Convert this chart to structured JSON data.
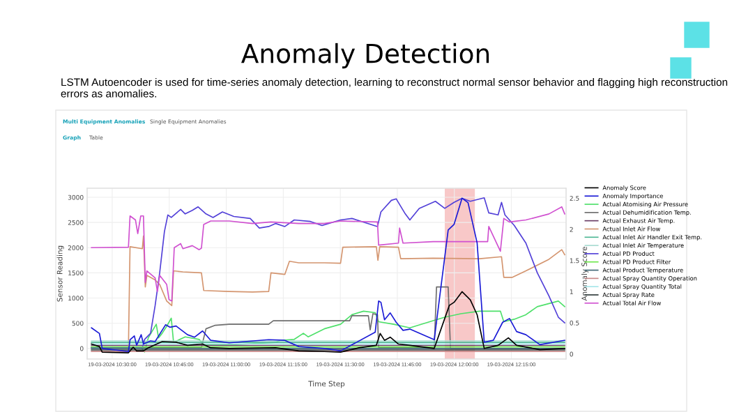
{
  "chart_data": {
    "type": "line",
    "title": "Anomaly Detection",
    "subtitle": "LSTM Autoencoder is used for time-series anomaly detection, learning to reconstruct normal sensor behavior and flagging high reconstruction errors as anomalies.",
    "annotations": [
      "Multi Equipment Anomalies",
      "Single Equipment Anomalies",
      "Graph",
      "Table"
    ],
    "xlabel": "Time Step",
    "ylabel": "Sensor Reading",
    "y2label": "Anomaly Score",
    "xlim": [
      "2024-03-19T10:23:24",
      "2024-03-19T12:29:24"
    ],
    "xticks": [
      {
        "value": "2024-03-19T10:30",
        "label": "19-03-2024 10:30:00"
      },
      {
        "value": "2024-03-19T10:45",
        "label": "19-03-2024 10:45:00"
      },
      {
        "value": "2024-03-19T11:00",
        "label": "19-03-2024 11:00:00"
      },
      {
        "value": "2024-03-19T11:15",
        "label": "19-03-2024 11:15:00"
      },
      {
        "value": "2024-03-19T11:30",
        "label": "19-03-2024 11:30:00"
      },
      {
        "value": "2024-03-19T11:45",
        "label": "19-03-2024 11:45:00"
      },
      {
        "value": "2024-03-19T12:00",
        "label": "19-03-2024 12:00:00"
      },
      {
        "value": "2024-03-19T12:15",
        "label": "19-03-2024 12:15:00"
      }
    ],
    "ylim": [
      -210,
      3180
    ],
    "yticks": [
      0,
      500,
      1000,
      1500,
      2000,
      2500,
      3000
    ],
    "y2lim": [
      -0.08,
      2.66
    ],
    "y2ticks": [
      0,
      0.5,
      1,
      1.5,
      2,
      2.5
    ],
    "grid": true,
    "legend": "right",
    "bands": [
      {
        "axis": "x",
        "from": "2024-03-19T11:57:29",
        "to": "2024-03-19T12:05:24",
        "color": "#f8c8c8"
      }
    ],
    "series": [
      {
        "name": "Anomaly Score",
        "color": "#000000",
        "axis": "y2",
        "x": [
          "2024-03-19T10:24:32",
          "2024-03-19T10:26:38",
          "2024-03-19T10:27:22",
          "2024-03-19T10:34:16",
          "2024-03-19T10:35:31",
          "2024-03-19T10:36:25",
          "2024-03-19T10:38:13",
          "2024-03-19T10:39:29",
          "2024-03-19T10:43:08",
          "2024-03-19T10:46:48",
          "2024-03-19T10:49:48",
          "2024-03-19T10:53:46",
          "2024-03-19T10:55:55",
          "2024-03-19T11:00:47",
          "2024-03-19T11:13:01",
          "2024-03-19T11:19:05",
          "2024-03-19T11:25:48",
          "2024-03-19T11:30:04",
          "2024-03-19T11:34:55",
          "2024-03-19T11:39:29",
          "2024-03-19T11:40:30",
          "2024-03-19T11:41:38",
          "2024-03-19T11:43:08",
          "2024-03-19T11:45:18",
          "2024-03-19T11:48:18",
          "2024-03-19T11:54:43",
          "2024-03-19T11:58:41",
          "2024-03-19T11:59:56",
          "2024-03-19T12:02:02",
          "2024-03-19T12:04:12",
          "2024-03-19T12:06:00",
          "2024-03-19T12:07:52",
          "2024-03-19T12:11:31",
          "2024-03-19T12:14:13",
          "2024-03-19T12:16:23",
          "2024-03-19T12:22:30",
          "2024-03-19T12:29:02"
        ],
        "values": [
          0.16,
          0.12,
          0.03,
          0.02,
          0.11,
          0.05,
          0.05,
          0.1,
          0.2,
          0.19,
          0.14,
          0.16,
          0.1,
          0.09,
          0.1,
          0.05,
          0.04,
          0.03,
          0.1,
          0.14,
          0.33,
          0.22,
          0.27,
          0.16,
          0.14,
          0.09,
          0.78,
          0.83,
          1.0,
          0.87,
          0.63,
          0.09,
          0.14,
          0.26,
          0.14,
          0.07,
          0.09
        ]
      },
      {
        "name": "Anomaly Importance",
        "color": "#1a1ad6",
        "axis": "y2",
        "x": [
          "2024-03-19T10:24:32",
          "2024-03-19T10:26:38",
          "2024-03-19T10:27:22",
          "2024-03-19T10:34:16",
          "2024-03-19T10:34:41",
          "2024-03-19T10:35:49",
          "2024-03-19T10:36:25",
          "2024-03-19T10:37:37",
          "2024-03-19T10:38:13",
          "2024-03-19T10:40:05",
          "2024-03-19T10:41:17",
          "2024-03-19T10:44:02",
          "2024-03-19T10:45:14",
          "2024-03-19T10:46:48",
          "2024-03-19T10:49:48",
          "2024-03-19T10:51:40",
          "2024-03-19T10:53:46",
          "2024-03-19T10:55:55",
          "2024-03-19T11:00:47",
          "2024-03-19T11:11:10",
          "2024-03-19T11:15:25",
          "2024-03-19T11:19:05",
          "2024-03-19T11:25:48",
          "2024-03-19T11:30:04",
          "2024-03-19T11:39:11",
          "2024-03-19T11:40:05",
          "2024-03-19T11:40:41",
          "2024-03-19T11:41:38",
          "2024-03-19T11:43:08",
          "2024-03-19T11:44:42",
          "2024-03-19T11:46:30",
          "2024-03-19T11:48:18",
          "2024-03-19T11:54:43",
          "2024-03-19T11:58:23",
          "2024-03-19T11:59:56",
          "2024-03-19T12:02:02",
          "2024-03-19T12:03:36",
          "2024-03-19T12:06:00",
          "2024-03-19T12:07:52",
          "2024-03-19T12:10:16",
          "2024-03-19T12:12:43",
          "2024-03-19T12:14:31",
          "2024-03-19T12:16:23",
          "2024-03-19T12:18:50",
          "2024-03-19T12:22:30",
          "2024-03-19T12:29:02"
        ],
        "values": [
          0.42,
          0.33,
          0.09,
          0.04,
          0.23,
          0.29,
          0.14,
          0.31,
          0.16,
          0.21,
          0.2,
          0.47,
          0.43,
          0.45,
          0.31,
          0.27,
          0.37,
          0.22,
          0.18,
          0.23,
          0.22,
          0.12,
          0.09,
          0.05,
          0.35,
          0.85,
          0.83,
          0.55,
          0.66,
          0.51,
          0.38,
          0.4,
          0.23,
          1.99,
          2.08,
          2.5,
          2.43,
          1.78,
          0.19,
          0.22,
          0.51,
          0.57,
          0.36,
          0.31,
          0.15,
          0.22
        ]
      },
      {
        "name": "Actual Atomising Air Pressure",
        "color": "#4ee06a",
        "x": [
          "2024-03-19T10:24:32",
          "2024-03-19T10:37:37",
          "2024-03-19T10:38:31",
          "2024-03-19T10:39:29",
          "2024-03-19T10:41:35",
          "2024-03-19T10:42:11",
          "2024-03-19T10:43:08",
          "2024-03-19T10:44:20",
          "2024-03-19T10:45:32",
          "2024-03-19T10:46:08",
          "2024-03-19T10:49:12",
          "2024-03-19T10:52:52",
          "2024-03-19T10:54:04",
          "2024-03-19T11:00:47",
          "2024-03-19T11:13:01",
          "2024-03-19T11:14:13",
          "2024-03-19T11:17:53",
          "2024-03-19T11:20:17",
          "2024-03-19T11:21:32",
          "2024-03-19T11:25:48",
          "2024-03-19T11:30:04",
          "2024-03-19T11:33:04",
          "2024-03-19T11:36:07",
          "2024-03-19T11:39:11",
          "2024-03-19T11:40:05",
          "2024-03-19T11:44:02",
          "2024-03-19T11:48:18",
          "2024-03-19T11:54:25",
          "2024-03-19T11:57:29",
          "2024-03-19T12:01:44",
          "2024-03-19T12:06:36",
          "2024-03-19T12:12:07",
          "2024-03-19T12:13:01",
          "2024-03-19T12:15:47",
          "2024-03-19T12:18:50",
          "2024-03-19T12:21:50",
          "2024-03-19T12:27:22",
          "2024-03-19T12:29:02"
        ],
        "values": [
          20,
          20,
          -70,
          210,
          480,
          210,
          300,
          440,
          600,
          120,
          230,
          180,
          70,
          70,
          120,
          160,
          180,
          300,
          230,
          390,
          480,
          670,
          740,
          710,
          530,
          480,
          410,
          550,
          620,
          690,
          740,
          740,
          530,
          580,
          670,
          830,
          940,
          830
        ]
      },
      {
        "name": "Actual Dehumidification Temp.",
        "color": "#6e6e6e",
        "x": [
          "2024-03-19T10:24:32",
          "2024-03-19T10:53:28",
          "2024-03-19T10:54:40",
          "2024-03-19T10:57:07",
          "2024-03-19T11:00:47",
          "2024-03-19T11:11:10",
          "2024-03-19T11:12:22",
          "2024-03-19T11:25:48",
          "2024-03-19T11:32:28",
          "2024-03-19T11:33:04",
          "2024-03-19T11:37:23",
          "2024-03-19T11:37:52",
          "2024-03-19T11:38:35",
          "2024-03-19T11:39:47",
          "2024-03-19T11:40:05",
          "2024-03-19T11:54:43",
          "2024-03-19T11:55:19",
          "2024-03-19T11:58:23",
          "2024-03-19T11:58:59",
          "2024-03-19T12:29:02"
        ],
        "values": [
          20,
          20,
          390,
          460,
          480,
          480,
          550,
          550,
          550,
          650,
          650,
          370,
          690,
          670,
          20,
          20,
          1220,
          1220,
          0,
          0
        ]
      },
      {
        "name": "Actual Exhaust Air Temp.",
        "color": "#6b3d66",
        "x": [
          "2024-03-19T10:24:32",
          "2024-03-19T12:29:02"
        ],
        "values": [
          60,
          60
        ]
      },
      {
        "name": "Actual Inlet Air Flow",
        "color": "#d4956f",
        "x": [
          "2024-03-19T10:24:32",
          "2024-03-19T10:34:16",
          "2024-03-19T10:34:41",
          "2024-03-19T10:37:55",
          "2024-03-19T10:38:13",
          "2024-03-19T10:38:42",
          "2024-03-19T10:39:07",
          "2024-03-19T10:41:17",
          "2024-03-19T10:42:29",
          "2024-03-19T10:44:20",
          "2024-03-19T10:45:40",
          "2024-03-19T10:46:08",
          "2024-03-19T10:48:36",
          "2024-03-19T10:53:28",
          "2024-03-19T10:54:04",
          "2024-03-19T11:00:47",
          "2024-03-19T11:06:54",
          "2024-03-19T11:11:10",
          "2024-03-19T11:11:46",
          "2024-03-19T11:15:25",
          "2024-03-19T11:16:37",
          "2024-03-19T11:19:05",
          "2024-03-19T11:25:48",
          "2024-03-19T11:30:04",
          "2024-03-19T11:30:40",
          "2024-03-19T11:39:29",
          "2024-03-19T11:39:54",
          "2024-03-19T11:40:23",
          "2024-03-19T11:45:18",
          "2024-03-19T11:45:54",
          "2024-03-19T11:54:25",
          "2024-03-19T12:06:40",
          "2024-03-19T12:12:25",
          "2024-03-19T12:13:01",
          "2024-03-19T12:15:11",
          "2024-03-19T12:18:50",
          "2024-03-19T12:24:54",
          "2024-03-19T12:28:16",
          "2024-03-19T12:29:02"
        ],
        "values": [
          20,
          20,
          2020,
          1980,
          2230,
          1220,
          1450,
          1360,
          1270,
          940,
          850,
          1540,
          1520,
          1500,
          1150,
          1130,
          1120,
          1130,
          1500,
          1470,
          1730,
          1700,
          1700,
          1690,
          2010,
          2020,
          1750,
          2020,
          2010,
          1780,
          1790,
          1780,
          1820,
          1410,
          1410,
          1540,
          1770,
          1960,
          1860
        ]
      },
      {
        "name": "Actual Inlet Air Handler Exit Temp.",
        "color": "#4fb894",
        "x": [
          "2024-03-19T10:24:32",
          "2024-03-19T12:29:02"
        ],
        "values": [
          120,
          120
        ]
      },
      {
        "name": "Actual Inlet Air Temperature",
        "color": "#a8dcd2",
        "x": [
          "2024-03-19T10:24:32",
          "2024-03-19T12:29:02"
        ],
        "values": [
          150,
          150
        ]
      },
      {
        "name": "Actual PD Product",
        "color": "#5240d8",
        "x": [
          "2024-03-19T10:24:32",
          "2024-03-19T10:37:55",
          "2024-03-19T10:38:31",
          "2024-03-19T10:40:05",
          "2024-03-19T10:41:17",
          "2024-03-19T10:42:29",
          "2024-03-19T10:43:44",
          "2024-03-19T10:44:38",
          "2024-03-19T10:45:32",
          "2024-03-19T10:48:00",
          "2024-03-19T10:49:12",
          "2024-03-19T10:51:04",
          "2024-03-19T10:52:34",
          "2024-03-19T10:54:40",
          "2024-03-19T10:56:31",
          "2024-03-19T10:58:59",
          "2024-03-19T11:01:59",
          "2024-03-19T11:06:18",
          "2024-03-19T11:08:42",
          "2024-03-19T11:11:10",
          "2024-03-19T11:13:01",
          "2024-03-19T11:15:25",
          "2024-03-19T11:17:53",
          "2024-03-19T11:22:08",
          "2024-03-19T11:25:12",
          "2024-03-19T11:30:04",
          "2024-03-19T11:33:04",
          "2024-03-19T11:39:47",
          "2024-03-19T11:40:41",
          "2024-03-19T11:43:26",
          "2024-03-19T11:44:42",
          "2024-03-19T11:47:06",
          "2024-03-19T11:48:18",
          "2024-03-19T11:50:46",
          "2024-03-19T11:55:01",
          "2024-03-19T11:57:29",
          "2024-03-19T11:59:56",
          "2024-03-19T12:02:02",
          "2024-03-19T12:04:12",
          "2024-03-19T12:07:52",
          "2024-03-19T12:09:04",
          "2024-03-19T12:11:31",
          "2024-03-19T12:12:25",
          "2024-03-19T12:13:19",
          "2024-03-19T12:15:47",
          "2024-03-19T12:18:50",
          "2024-03-19T12:21:50",
          "2024-03-19T12:24:54",
          "2024-03-19T12:27:22",
          "2024-03-19T12:29:02"
        ],
        "values": [
          20,
          20,
          180,
          300,
          850,
          1500,
          2320,
          2650,
          2600,
          2760,
          2670,
          2740,
          2810,
          2670,
          2600,
          2710,
          2620,
          2580,
          2390,
          2420,
          2480,
          2420,
          2550,
          2520,
          2440,
          2550,
          2580,
          2420,
          2710,
          2940,
          2970,
          2670,
          2550,
          2780,
          2920,
          2780,
          2900,
          2980,
          2920,
          2990,
          2690,
          2650,
          2900,
          2650,
          2440,
          2090,
          1500,
          1040,
          620,
          510
        ]
      },
      {
        "name": "Actual PD Product Filter",
        "color": "#6fe84e",
        "x": [
          "2024-03-19T10:24:32",
          "2024-03-19T12:29:02"
        ],
        "values": [
          30,
          30
        ]
      },
      {
        "name": "Actual Product Temperature",
        "color": "#3f6676",
        "x": [
          "2024-03-19T10:24:32",
          "2024-03-19T12:29:02"
        ],
        "values": [
          0,
          0
        ]
      },
      {
        "name": "Actual Spray Quantity Operation",
        "color": "#c98a8a",
        "x": [
          "2024-03-19T10:24:32",
          "2024-03-19T12:29:02"
        ],
        "values": [
          -60,
          -60
        ]
      },
      {
        "name": "Actual Spray Quantity Total",
        "color": "#a6e6ea",
        "x": [
          "2024-03-19T10:24:32",
          "2024-03-19T12:29:02"
        ],
        "values": [
          90,
          90
        ]
      },
      {
        "name": "Actual Spray Rate",
        "color": "#2f3b3b",
        "x": [
          "2024-03-19T10:24:32",
          "2024-03-19T12:29:02"
        ],
        "values": [
          -30,
          -30
        ]
      },
      {
        "name": "Actual Total Air Flow",
        "color": "#d050d0",
        "x": [
          "2024-03-19T10:24:32",
          "2024-03-19T10:34:16",
          "2024-03-19T10:34:41",
          "2024-03-19T10:36:07",
          "2024-03-19T10:36:43",
          "2024-03-19T10:37:30",
          "2024-03-19T10:38:13",
          "2024-03-19T10:38:42",
          "2024-03-19T10:39:07",
          "2024-03-19T10:41:17",
          "2024-03-19T10:41:53",
          "2024-03-19T10:42:29",
          "2024-03-19T10:44:20",
          "2024-03-19T10:44:56",
          "2024-03-19T10:45:40",
          "2024-03-19T10:46:19",
          "2024-03-19T10:48:00",
          "2024-03-19T10:48:36",
          "2024-03-19T10:51:04",
          "2024-03-19T10:52:52",
          "2024-03-19T10:53:28",
          "2024-03-19T10:54:04",
          "2024-03-19T10:55:55",
          "2024-03-19T11:00:47",
          "2024-03-19T11:06:54",
          "2024-03-19T11:11:46",
          "2024-03-19T11:19:05",
          "2024-03-19T11:25:48",
          "2024-03-19T11:30:04",
          "2024-03-19T11:39:47",
          "2024-03-19T11:40:05",
          "2024-03-19T11:45:18",
          "2024-03-19T11:45:36",
          "2024-03-19T11:46:30",
          "2024-03-19T11:54:25",
          "2024-03-19T12:08:46",
          "2024-03-19T12:09:04",
          "2024-03-19T12:12:07",
          "2024-03-19T12:13:01",
          "2024-03-19T12:14:31",
          "2024-03-19T12:18:50",
          "2024-03-19T12:24:54",
          "2024-03-19T12:28:16",
          "2024-03-19T12:29:02"
        ],
        "values": [
          2000,
          2010,
          2630,
          2550,
          2280,
          2630,
          2630,
          1310,
          1540,
          1400,
          1130,
          1450,
          1270,
          970,
          940,
          2000,
          2080,
          1980,
          2040,
          1960,
          1990,
          2460,
          2530,
          2530,
          2480,
          2510,
          2480,
          2480,
          2530,
          2510,
          2050,
          2090,
          2390,
          2090,
          2120,
          2120,
          2420,
          1930,
          2580,
          2510,
          2550,
          2670,
          2810,
          2670
        ]
      }
    ]
  }
}
